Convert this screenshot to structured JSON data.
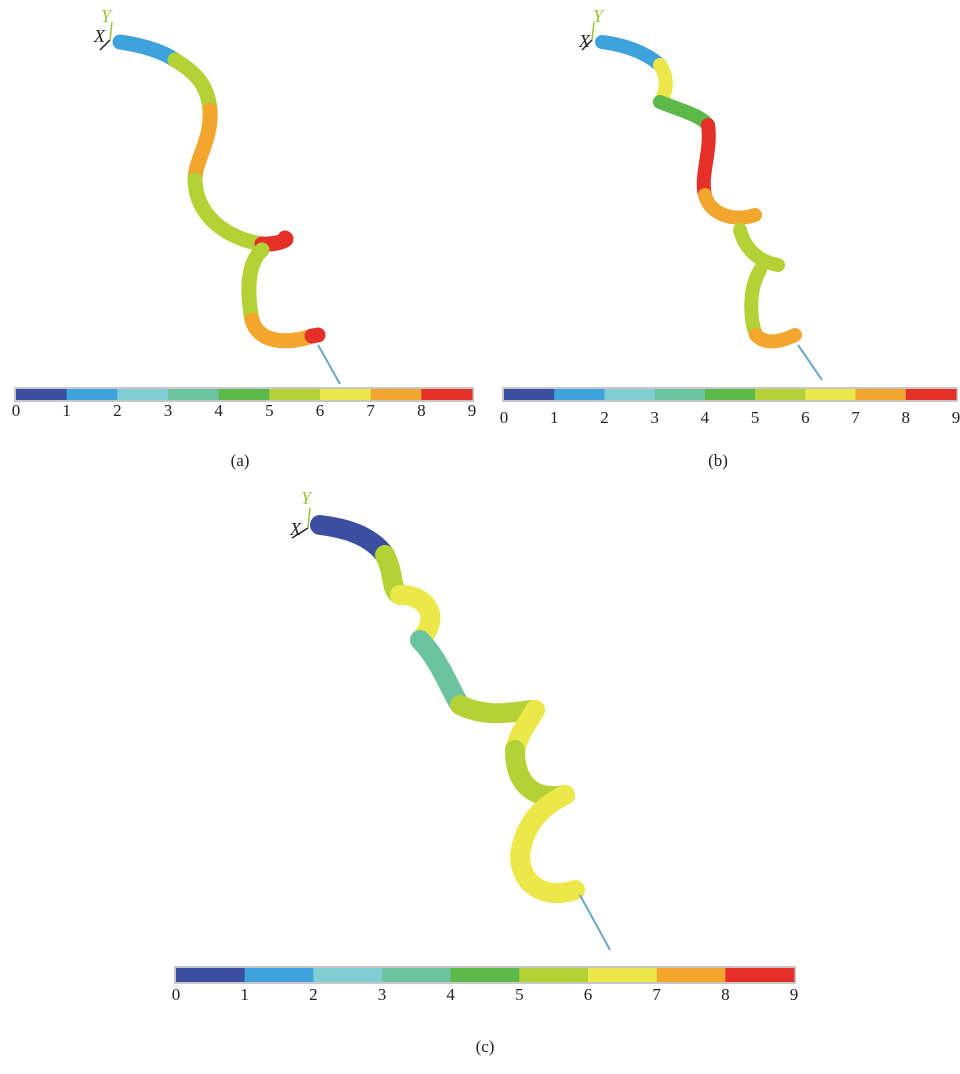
{
  "colorbar_colors": [
    "#3b4ea0",
    "#3ea3dd",
    "#80cdd6",
    "#6cc3a0",
    "#5cb848",
    "#b4d235",
    "#ece84a",
    "#f2a62e",
    "#e5302a"
  ],
  "panels": [
    {
      "label": "(a)",
      "axis_x": "X",
      "axis_y": "Y",
      "ticks": [
        0,
        1,
        2,
        3,
        4,
        5,
        6,
        7,
        8,
        9
      ]
    },
    {
      "label": "(b)",
      "axis_x": "X",
      "axis_y": "Y",
      "ticks": [
        0,
        1,
        2,
        3,
        4,
        5,
        6,
        7,
        8,
        9
      ]
    },
    {
      "label": "(c)",
      "axis_x": "X",
      "axis_y": "Y",
      "ticks": [
        0,
        1,
        2,
        3,
        4,
        5,
        6,
        7,
        8,
        9
      ]
    }
  ]
}
